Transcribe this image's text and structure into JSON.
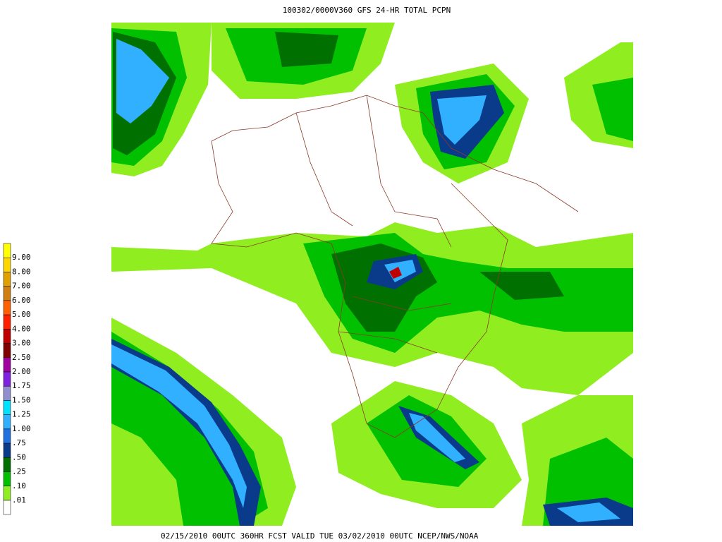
{
  "title": "100302/0000V360 GFS 24-HR TOTAL PCPN",
  "footer": "02/15/2010 00UTC 360HR FCST VALID TUE 03/02/2010 00UTC  NCEP/NWS/NOAA",
  "legend": {
    "items": [
      {
        "label": "9.00",
        "color": "#ffff00"
      },
      {
        "label": "8.00",
        "color": "#ffd700"
      },
      {
        "label": "7.00",
        "color": "#e0a000"
      },
      {
        "label": "6.00",
        "color": "#d08010"
      },
      {
        "label": "5.00",
        "color": "#ff6000"
      },
      {
        "label": "4.00",
        "color": "#ff2000"
      },
      {
        "label": "3.00",
        "color": "#c00000"
      },
      {
        "label": "2.50",
        "color": "#800000"
      },
      {
        "label": "2.00",
        "color": "#a000a0"
      },
      {
        "label": "1.75",
        "color": "#8020e0"
      },
      {
        "label": "1.50",
        "color": "#9090d0"
      },
      {
        "label": "1.25",
        "color": "#00e0ff"
      },
      {
        "label": "1.00",
        "color": "#30b0ff"
      },
      {
        "label": ".75",
        "color": "#2070e0"
      },
      {
        "label": ".50",
        "color": "#0a3a8a"
      },
      {
        "label": ".25",
        "color": "#007000"
      },
      {
        "label": ".10",
        "color": "#00c000"
      },
      {
        "label": ".01",
        "color": "#90ee20"
      }
    ]
  }
}
